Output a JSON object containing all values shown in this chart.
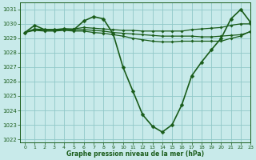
{
  "title": "Graphe pression niveau de la mer (hPa)",
  "background_color": "#c8eaea",
  "grid_color": "#90c8c8",
  "line_color": "#1a5c1a",
  "xlim": [
    -0.5,
    23
  ],
  "ylim": [
    1021.8,
    1031.5
  ],
  "yticks": [
    1022,
    1023,
    1024,
    1025,
    1026,
    1027,
    1028,
    1029,
    1030,
    1031
  ],
  "xticks": [
    0,
    1,
    2,
    3,
    4,
    5,
    6,
    7,
    8,
    9,
    10,
    11,
    12,
    13,
    14,
    15,
    16,
    17,
    18,
    19,
    20,
    21,
    22,
    23
  ],
  "series": [
    {
      "x": [
        0,
        1,
        2,
        3,
        4,
        5,
        6,
        7,
        8,
        9,
        10,
        11,
        12,
        13,
        14,
        15,
        16,
        17,
        18,
        19,
        20,
        21,
        22,
        23
      ],
      "y": [
        1029.4,
        1029.9,
        1029.6,
        1029.6,
        1029.65,
        1029.6,
        1030.2,
        1030.5,
        1030.35,
        1029.3,
        1027.0,
        1025.35,
        1023.7,
        1022.9,
        1022.5,
        1023.0,
        1024.4,
        1026.4,
        1027.35,
        1028.2,
        1029.0,
        1030.35,
        1031.0,
        1030.1
      ],
      "marker": "D",
      "markersize": 2.5,
      "linewidth": 1.2,
      "has_markers": true
    },
    {
      "x": [
        0,
        1,
        2,
        3,
        4,
        5,
        6,
        7,
        8,
        9,
        10,
        11,
        12,
        13,
        14,
        15,
        16,
        17,
        18,
        19,
        20,
        21,
        22,
        23
      ],
      "y": [
        1029.4,
        1029.65,
        1029.6,
        1029.6,
        1029.65,
        1029.65,
        1029.75,
        1029.7,
        1029.65,
        1029.6,
        1029.55,
        1029.55,
        1029.5,
        1029.5,
        1029.5,
        1029.5,
        1029.5,
        1029.6,
        1029.65,
        1029.7,
        1029.75,
        1029.9,
        1030.0,
        1030.0
      ],
      "marker": "D",
      "markersize": 2.0,
      "linewidth": 0.9,
      "has_markers": false
    },
    {
      "x": [
        0,
        1,
        2,
        3,
        4,
        5,
        6,
        7,
        8,
        9,
        10,
        11,
        12,
        13,
        14,
        15,
        16,
        17,
        18,
        19,
        20,
        21,
        22,
        23
      ],
      "y": [
        1029.4,
        1029.6,
        1029.55,
        1029.55,
        1029.6,
        1029.6,
        1029.6,
        1029.55,
        1029.5,
        1029.4,
        1029.35,
        1029.3,
        1029.25,
        1029.2,
        1029.15,
        1029.15,
        1029.15,
        1029.15,
        1029.1,
        1029.1,
        1029.15,
        1029.2,
        1029.25,
        1029.45
      ],
      "marker": "D",
      "markersize": 2.0,
      "linewidth": 0.9,
      "has_markers": false
    },
    {
      "x": [
        0,
        1,
        2,
        3,
        4,
        5,
        6,
        7,
        8,
        9,
        10,
        11,
        12,
        13,
        14,
        15,
        16,
        17,
        18,
        19,
        20,
        21,
        22,
        23
      ],
      "y": [
        1029.4,
        1029.55,
        1029.5,
        1029.5,
        1029.55,
        1029.5,
        1029.5,
        1029.4,
        1029.35,
        1029.25,
        1029.15,
        1029.0,
        1028.9,
        1028.8,
        1028.75,
        1028.75,
        1028.8,
        1028.8,
        1028.8,
        1028.8,
        1028.8,
        1029.0,
        1029.15,
        1029.5
      ],
      "marker": "D",
      "markersize": 2.0,
      "linewidth": 0.9,
      "has_markers": false
    }
  ]
}
